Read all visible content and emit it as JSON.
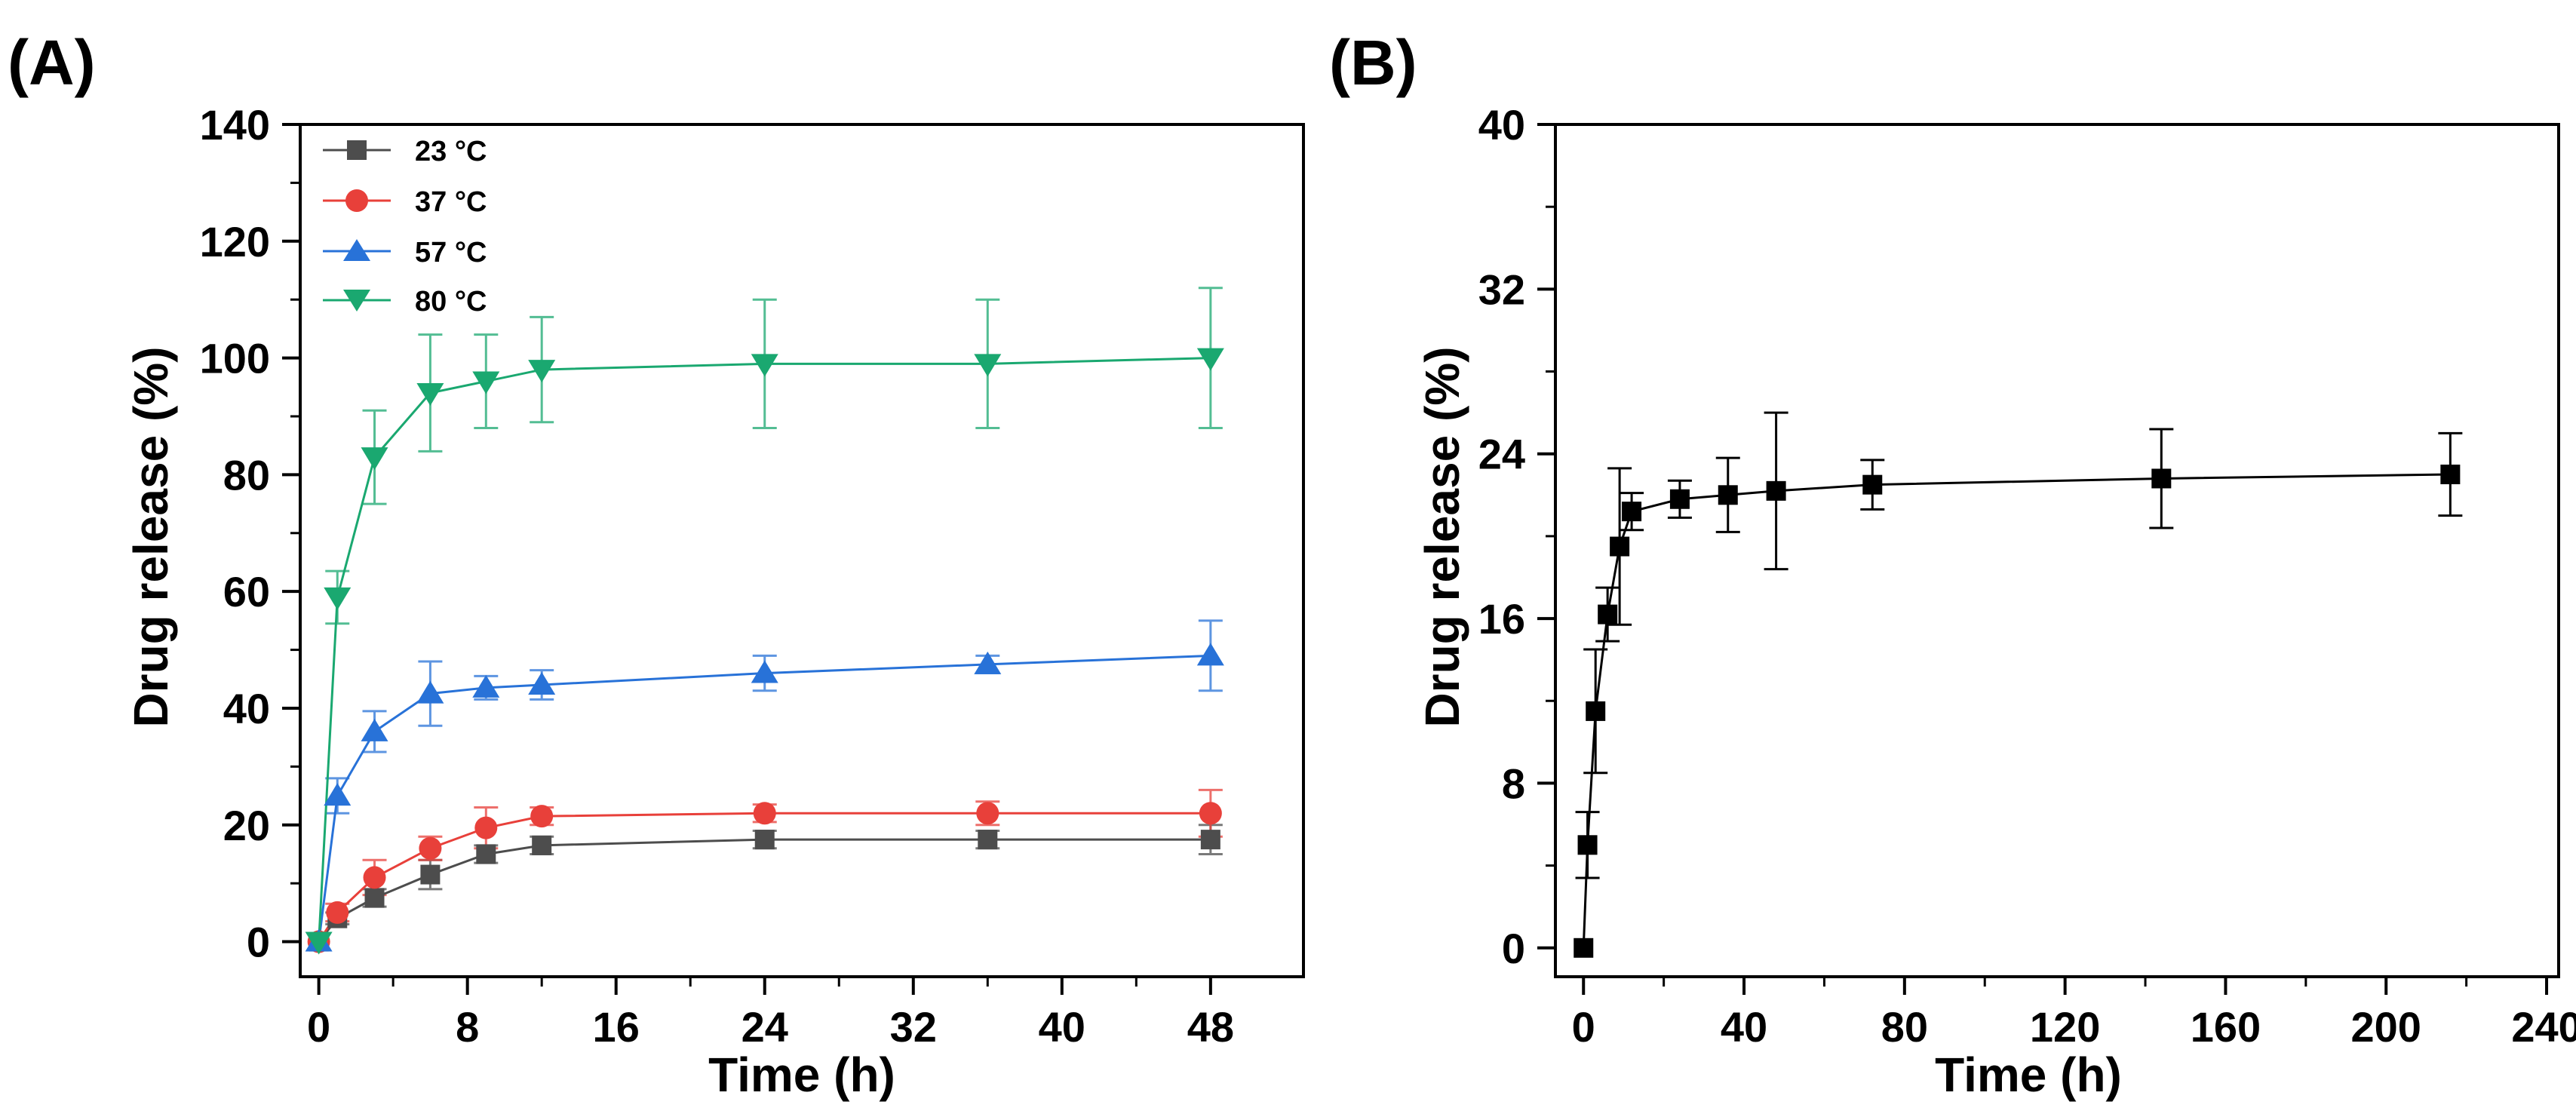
{
  "chart_data": [
    {
      "type": "line",
      "panel_label": "(A)",
      "title": "",
      "xlabel": "Time (h)",
      "ylabel": "Drug release (%)",
      "xlim": [
        -1,
        53
      ],
      "ylim": [
        -6,
        140
      ],
      "xticks": [
        0,
        8,
        16,
        24,
        32,
        40,
        48
      ],
      "yticks": [
        0,
        20,
        40,
        60,
        80,
        100,
        120,
        140
      ],
      "grid": false,
      "legend": "top-left",
      "series": [
        {
          "name": "23 °C",
          "color": "#4d4d4d",
          "marker": "square",
          "x": [
            0,
            1,
            3,
            6,
            9,
            12,
            24,
            36,
            48
          ],
          "y": [
            0,
            4,
            7.5,
            11.5,
            15,
            16.5,
            17.5,
            17.5,
            17.5
          ],
          "err": [
            0,
            1,
            1.5,
            2.5,
            1.5,
            1.5,
            1.5,
            1.5,
            2.5
          ]
        },
        {
          "name": "37 °C",
          "color": "#e8403a",
          "marker": "circle",
          "x": [
            0,
            1,
            3,
            6,
            9,
            12,
            24,
            36,
            48
          ],
          "y": [
            0,
            5,
            11,
            16,
            19.5,
            21.5,
            22,
            22,
            22
          ],
          "err": [
            0,
            1.5,
            3,
            2,
            3.5,
            1.5,
            1.5,
            2,
            4
          ]
        },
        {
          "name": "57 °C",
          "color": "#2872d8",
          "marker": "triangle-up",
          "x": [
            0,
            1,
            3,
            6,
            9,
            12,
            24,
            36,
            48
          ],
          "y": [
            0,
            25,
            36,
            42.5,
            43.5,
            44,
            46,
            47.5,
            49
          ],
          "err": [
            0,
            3,
            3.5,
            5.5,
            2,
            2.5,
            3,
            1.5,
            6
          ]
        },
        {
          "name": "80 °C",
          "color": "#1aa870",
          "marker": "triangle-down",
          "x": [
            0,
            1,
            3,
            6,
            9,
            12,
            24,
            36,
            48
          ],
          "y": [
            0,
            59,
            83,
            94,
            96,
            98,
            99,
            99,
            100
          ],
          "err": [
            0,
            4.5,
            8,
            10,
            8,
            9,
            11,
            11,
            12
          ]
        }
      ]
    },
    {
      "type": "line",
      "panel_label": "(B)",
      "title": "",
      "xlabel": "Time (h)",
      "ylabel": "Drug release (%)",
      "xlim": [
        -7,
        243
      ],
      "ylim": [
        -1.4,
        40
      ],
      "xticks": [
        0,
        40,
        80,
        120,
        160,
        200,
        240
      ],
      "yticks": [
        0,
        8,
        16,
        24,
        32,
        40
      ],
      "grid": false,
      "series": [
        {
          "name": "",
          "color": "#000000",
          "marker": "square",
          "x": [
            0,
            1,
            3,
            6,
            9,
            12,
            24,
            36,
            48,
            72,
            144,
            216
          ],
          "y": [
            0,
            5,
            11.5,
            16.2,
            19.5,
            21.2,
            21.8,
            22,
            22.2,
            22.5,
            22.8,
            23
          ],
          "err": [
            0,
            1.6,
            3,
            1.3,
            3.8,
            0.9,
            0.9,
            1.8,
            3.8,
            1.2,
            2.4,
            2
          ]
        }
      ]
    }
  ]
}
